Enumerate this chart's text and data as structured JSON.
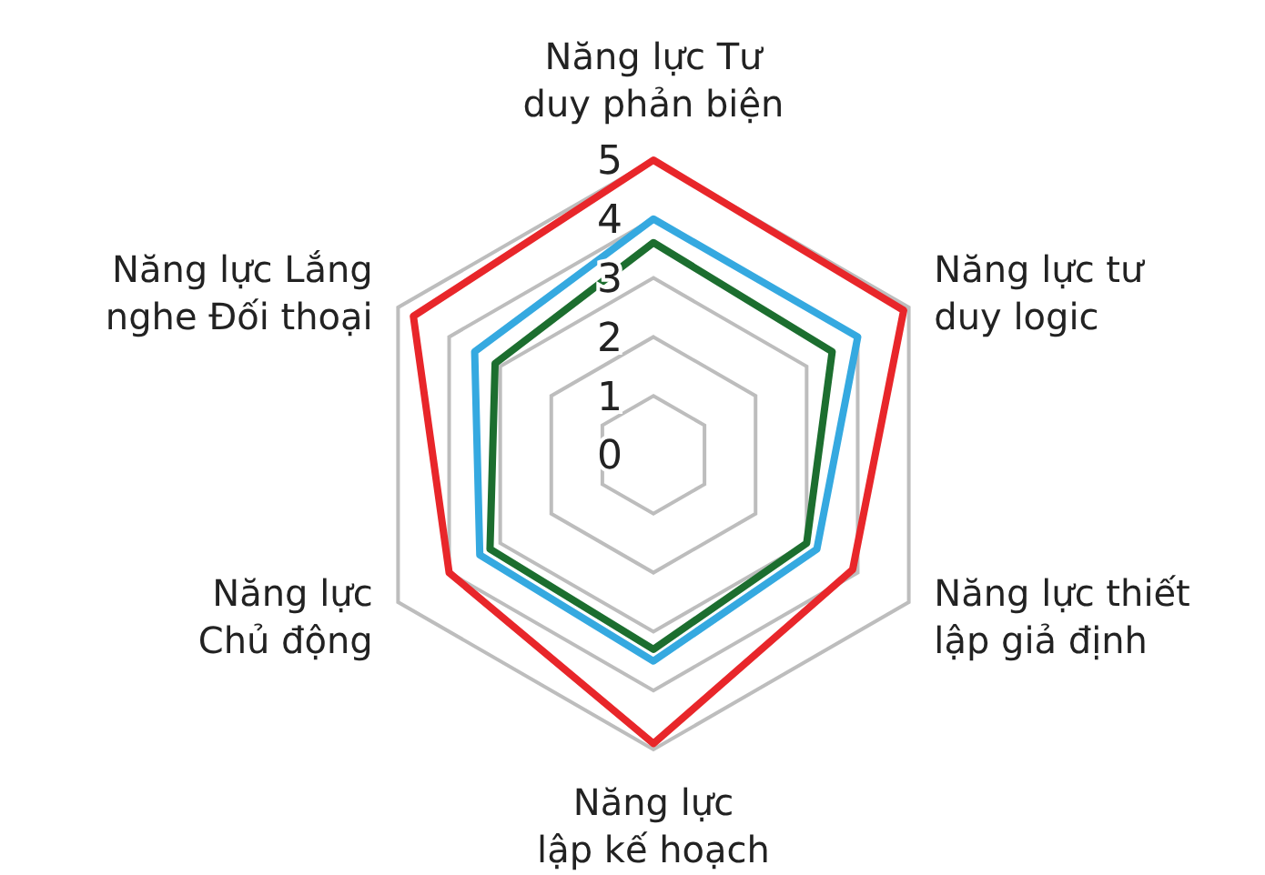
{
  "chart_data": {
    "type": "radar",
    "categories": [
      "Năng lực Tư duy phản biện",
      "Năng lực tư duy logic",
      "Năng lực thiết lập giả định",
      "Năng lực lập kế hoạch",
      "Năng lực Chủ động",
      "Năng lực Lắng nghe Đối thoại"
    ],
    "series": [
      {
        "color": "#e8262a",
        "values": [
          5,
          4.9,
          3.9,
          4.9,
          4.0,
          4.7
        ]
      },
      {
        "color": "#35a9e0",
        "values": [
          4,
          4.0,
          3.2,
          3.5,
          3.4,
          3.5
        ]
      },
      {
        "color": "#1c6e2f",
        "values": [
          3.6,
          3.5,
          3.0,
          3.3,
          3.2,
          3.1
        ]
      }
    ],
    "ylim": [
      0,
      5
    ],
    "yticks": [
      0,
      1,
      2,
      3,
      4,
      5
    ],
    "grid": true,
    "marker": "none",
    "line_style": "solid"
  }
}
